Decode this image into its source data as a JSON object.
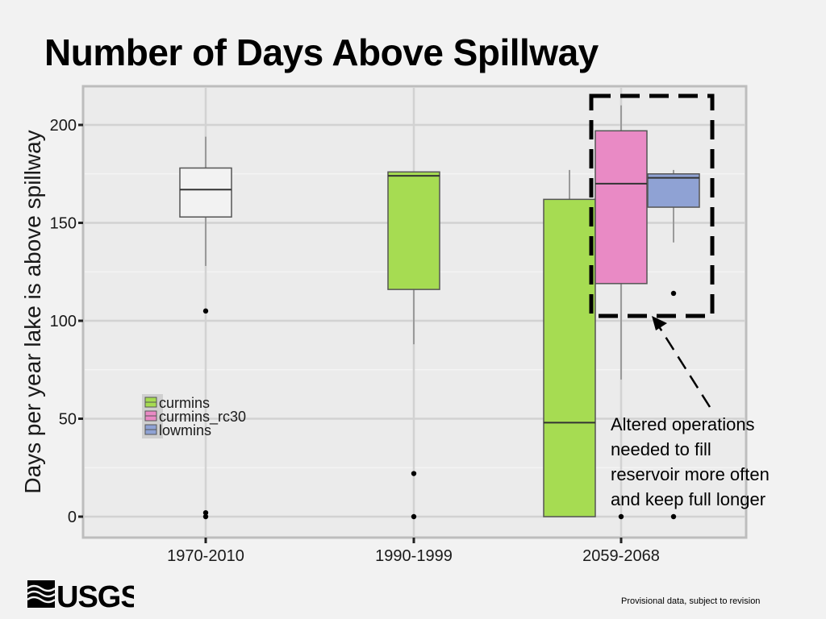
{
  "slide": {
    "title": "Number of Days Above Spillway",
    "callout_lines": [
      "Altered operations",
      "needed to fill",
      "reservoir more often",
      "and keep full longer"
    ],
    "footer_note": "Provisional data, subject to revision",
    "logo_text": "USGS"
  },
  "chart_data": {
    "type": "box",
    "title": "",
    "xlabel": "",
    "ylabel": "Days per year lake is above spillway",
    "ylim": [
      -10,
      220
    ],
    "yticks": [
      0,
      50,
      100,
      150,
      200
    ],
    "categories": [
      "1970-2010",
      "1990-1999",
      "2059-2068"
    ],
    "grid": true,
    "legend": {
      "position": "left-middle",
      "entries": [
        {
          "name": "curmins",
          "color": "#a6dc52"
        },
        {
          "name": "curmins_rc30",
          "color": "#e98ac5"
        },
        {
          "name": "lowmins",
          "color": "#8fa2d4"
        }
      ]
    },
    "boxes": [
      {
        "category": "1970-2010",
        "series": "",
        "color": "#f2f2f2",
        "q1": 153,
        "median": 167,
        "q3": 178,
        "whisker_low": 128,
        "whisker_high": 194,
        "outliers": [
          105,
          2,
          0
        ]
      },
      {
        "category": "1990-1999",
        "series": "curmins",
        "color": "#a6dc52",
        "q1": 116,
        "median": 174,
        "q3": 176,
        "whisker_low": 88,
        "whisker_high": 176,
        "outliers": [
          22,
          0
        ]
      },
      {
        "category": "2059-2068",
        "series": "curmins",
        "color": "#a6dc52",
        "q1": 0,
        "median": 48,
        "q3": 162,
        "whisker_low": 0,
        "whisker_high": 177,
        "outliers": []
      },
      {
        "category": "2059-2068",
        "series": "curmins_rc30",
        "color": "#e98ac5",
        "q1": 119,
        "median": 170,
        "q3": 197,
        "whisker_low": 70,
        "whisker_high": 210,
        "outliers": [
          0
        ]
      },
      {
        "category": "2059-2068",
        "series": "lowmins",
        "color": "#8fa2d4",
        "q1": 158,
        "median": 173,
        "q3": 175,
        "whisker_low": 140,
        "whisker_high": 177,
        "outliers": [
          114,
          0
        ]
      }
    ]
  }
}
